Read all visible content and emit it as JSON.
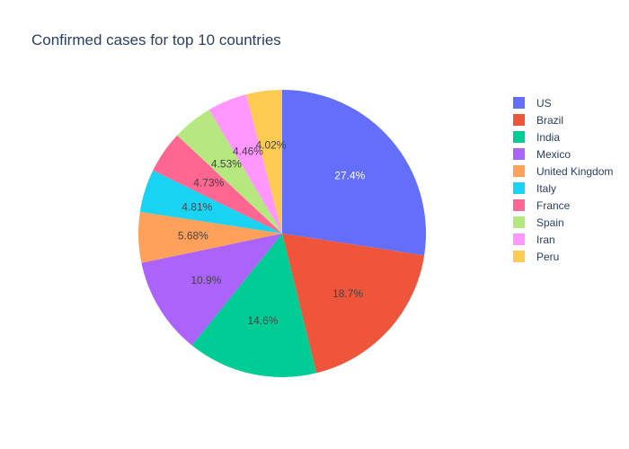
{
  "chart_data": {
    "type": "pie",
    "title": "Confirmed cases for top 10 countries",
    "categories": [
      "US",
      "Brazil",
      "India",
      "Mexico",
      "United Kingdom",
      "Italy",
      "France",
      "Spain",
      "Iran",
      "Peru"
    ],
    "values": [
      27.4,
      18.7,
      14.6,
      10.9,
      5.68,
      4.81,
      4.73,
      4.53,
      4.46,
      4.02
    ],
    "labels": [
      "27.4%",
      "18.7%",
      "14.6%",
      "10.9%",
      "5.68%",
      "4.81%",
      "4.73%",
      "4.53%",
      "4.46%",
      "4.02%"
    ],
    "colors": [
      "#636efa",
      "#EF553B",
      "#00cc96",
      "#ab63fa",
      "#FFA15A",
      "#19d3f3",
      "#FF6692",
      "#B6E880",
      "#FF97FF",
      "#FECB52"
    ],
    "label_colors": [
      "#ffffff",
      "#444444",
      "#444444",
      "#444444",
      "#444444",
      "#444444",
      "#444444",
      "#444444",
      "#444444",
      "#444444"
    ],
    "direction": "clockwise",
    "start_angle": "12 o'clock",
    "legend_position": "right"
  }
}
